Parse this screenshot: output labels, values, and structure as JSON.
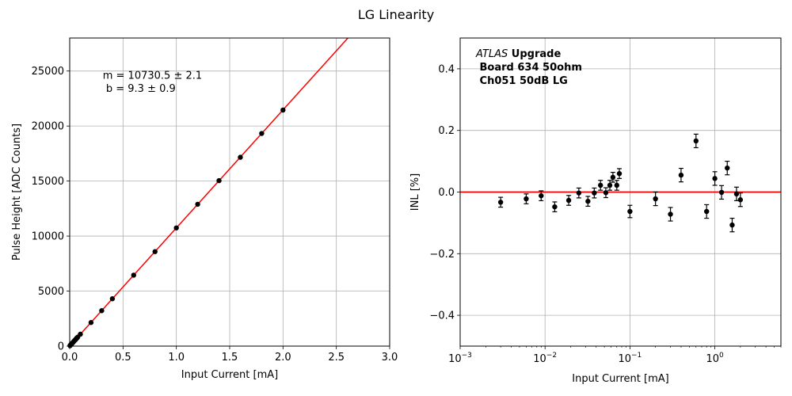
{
  "figure_title": "LG Linearity",
  "chart_data": [
    {
      "type": "scatter",
      "panel": "left",
      "xlabel": "Input Current [mA]",
      "ylabel": "Pulse Height [ADC Counts]",
      "xlim": [
        0,
        3
      ],
      "ylim": [
        0,
        28000
      ],
      "grid": true,
      "xticks": [
        0,
        0.5,
        1,
        1.5,
        2,
        2.5,
        3
      ],
      "xtick_labels": [
        "0.0",
        "0.5",
        "1.0",
        "1.5",
        "2.0",
        "2.5",
        "3.0"
      ],
      "yticks": [
        0,
        5000,
        10000,
        15000,
        20000,
        25000
      ],
      "ytick_labels": [
        "0",
        "5000",
        "10000",
        "15000",
        "20000",
        "25000"
      ],
      "annotation_lines": [
        "m = 10730.5 ± 2.1",
        " b = 9.3 ± 0.9"
      ],
      "fit": {
        "slope": 10730.5,
        "intercept": 9.3,
        "color": "#ff0000"
      },
      "marker_color": "#000000",
      "points": {
        "x": [
          0.003,
          0.006,
          0.009,
          0.013,
          0.019,
          0.025,
          0.032,
          0.04,
          0.045,
          0.052,
          0.058,
          0.063,
          0.07,
          0.075,
          0.1,
          0.2,
          0.3,
          0.4,
          0.6,
          0.8,
          1.0,
          1.2,
          1.4,
          1.6,
          1.8,
          2.0
        ],
        "y": [
          41,
          74,
          106,
          148,
          213,
          277,
          352,
          438,
          492,
          566,
          632,
          685,
          761,
          813,
          1079,
          2143,
          3221,
          4302,
          6447,
          8587,
          10740,
          12890,
          15038,
          17159,
          19324,
          21454
        ]
      }
    },
    {
      "type": "scatter",
      "panel": "right",
      "xlabel": "Input Current [mA]",
      "ylabel": "INL [%]",
      "xscale": "log",
      "xlim": [
        0.001,
        6
      ],
      "ylim": [
        -0.5,
        0.5
      ],
      "grid": true,
      "xticks": [
        0.001,
        0.01,
        0.1,
        1
      ],
      "xtick_base": "10",
      "xtick_exponents": [
        "−3",
        "−2",
        "−1",
        "0"
      ],
      "yticks": [
        -0.4,
        -0.2,
        0.0,
        0.2,
        0.4
      ],
      "ytick_labels": [
        "−0.4",
        "−0.2",
        "0.0",
        "0.2",
        "0.4"
      ],
      "legend_text": {
        "italic": "ATLAS",
        "bold_after_italic": " Upgrade",
        "line2": " Board 634 50ohm",
        "line3": " Ch051 50dB LG"
      },
      "reference_line": {
        "y": 0,
        "color": "#ff0000"
      },
      "marker_color": "#000000",
      "points": {
        "x": [
          0.003,
          0.006,
          0.009,
          0.013,
          0.019,
          0.025,
          0.032,
          0.038,
          0.045,
          0.052,
          0.058,
          0.063,
          0.07,
          0.075,
          0.1,
          0.2,
          0.3,
          0.4,
          0.6,
          0.8,
          1.0,
          1.2,
          1.4,
          1.6,
          1.8,
          2.0
        ],
        "y": [
          -0.033,
          -0.022,
          -0.012,
          -0.048,
          -0.027,
          -0.003,
          -0.03,
          -0.003,
          0.022,
          -0.002,
          0.022,
          0.048,
          0.022,
          0.06,
          -0.063,
          -0.022,
          -0.072,
          0.055,
          0.166,
          -0.063,
          0.044,
          -0.001,
          0.078,
          -0.107,
          -0.006,
          -0.025
        ],
        "yerr": [
          0.016,
          0.016,
          0.016,
          0.016,
          0.016,
          0.016,
          0.016,
          0.016,
          0.016,
          0.016,
          0.016,
          0.016,
          0.016,
          0.016,
          0.02,
          0.022,
          0.022,
          0.022,
          0.022,
          0.022,
          0.022,
          0.022,
          0.022,
          0.022,
          0.022,
          0.022
        ]
      }
    }
  ]
}
